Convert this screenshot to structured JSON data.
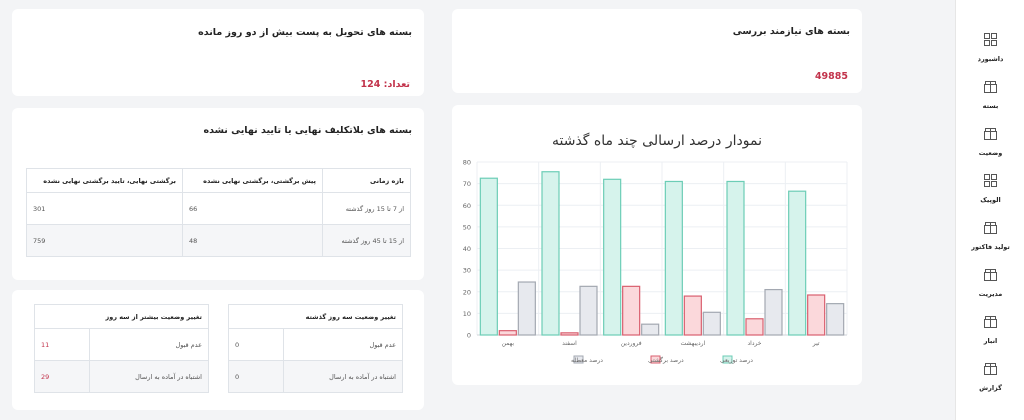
{
  "sidebar": {
    "items": [
      {
        "label": "داشبورد",
        "icon": "grid-icon"
      },
      {
        "label": "بسته",
        "icon": "box-icon"
      },
      {
        "label": "وضعیت",
        "icon": "box-icon"
      },
      {
        "label": "الوپیک",
        "icon": "grid-icon"
      },
      {
        "label": "تولید فاکتور",
        "icon": "box-icon"
      },
      {
        "label": "مدیریت",
        "icon": "box-icon"
      },
      {
        "label": "انبار",
        "icon": "box-icon"
      },
      {
        "label": "گزارش",
        "icon": "box-icon"
      }
    ]
  },
  "cards": {
    "pending_review": {
      "title": "بسته های نیازمند بررسی",
      "value": "49885"
    },
    "delivered_early": {
      "title": "بسته های تحویل به پست بیش از دو روز مانده",
      "value": "تعداد: 124"
    }
  },
  "unassigned": {
    "title": "بسته های بلاتکلیف نهایی یا تایید نهایی نشده",
    "headers": [
      "بازه زمانی",
      "پیش برگشتی، برگشتی نهایی نشده",
      "برگشتی نهایی، تایید برگشتی نهایی نشده"
    ],
    "rows": [
      [
        "از 7 تا 15 روز گذشته",
        "66",
        "301"
      ],
      [
        "از 15 تا 45 روز گذشته",
        "48",
        "759"
      ]
    ]
  },
  "status_3days": {
    "header": "تغییر وضعیت سه روز گذشته",
    "rows": [
      [
        "عدم قبول",
        "0"
      ],
      [
        "اشتباه در آماده به ارسال",
        "0"
      ]
    ]
  },
  "status_more3": {
    "header": "تغییر وضعیت بیشتر از سه روز",
    "rows": [
      [
        "عدم قبول",
        "11"
      ],
      [
        "اشتباه در آماده به ارسال",
        "29"
      ]
    ]
  },
  "colors": {
    "accent_red": "#c2334b",
    "teal": "#c7efe6",
    "pink": "#f9d3d6",
    "gray": "#e6e8ec"
  },
  "chart_data": {
    "type": "bar",
    "title": "نمودار درصد ارسالی چند ماه گذشته",
    "categories": [
      "بهمن",
      "اسفند",
      "فروردین",
      "اردیبهشت",
      "خرداد",
      "تیر"
    ],
    "ylim": [
      0,
      80
    ],
    "yticks": [
      0,
      10,
      20,
      30,
      40,
      50,
      60,
      70,
      80
    ],
    "grid": true,
    "legend_position": "bottom",
    "series": [
      {
        "name": "درصد توزیعی",
        "values": [
          72.5,
          75.5,
          72,
          71,
          71,
          66.5
        ],
        "fill": "#d6f3ec",
        "stroke": "#6ccdb6"
      },
      {
        "name": "درصد برگشتی",
        "values": [
          2,
          1,
          22.5,
          18,
          7.5,
          18.5
        ],
        "fill": "#fbd8db",
        "stroke": "#d95f6f"
      },
      {
        "name": "درصد معطله",
        "values": [
          24.5,
          22.5,
          5,
          10.5,
          21,
          14.5
        ],
        "fill": "#e7e9ee",
        "stroke": "#a3a8b1"
      }
    ]
  }
}
